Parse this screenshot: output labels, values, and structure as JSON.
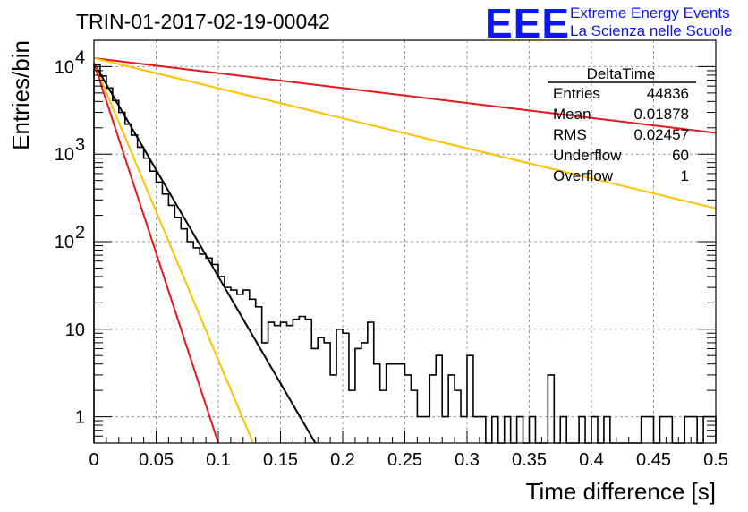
{
  "title": "TRIN-01-2017-02-19-00042",
  "logo": {
    "mark": "EEE",
    "line1": "Extreme Energy Events",
    "line2": "La Scienza nelle Scuole"
  },
  "stats": {
    "name": "DeltaTime",
    "rows": [
      {
        "label": "Entries",
        "value": "44836"
      },
      {
        "label": "Mean",
        "value": "0.01878"
      },
      {
        "label": "RMS",
        "value": "0.02457"
      },
      {
        "label": "Underflow",
        "value": "60"
      },
      {
        "label": "Overflow",
        "value": "1"
      }
    ]
  },
  "colors": {
    "histogram": "#000000",
    "fit_black": "#000000",
    "red": "#e8141c",
    "orange": "#ffc000",
    "logo": "#0a14ff"
  },
  "chart_data": {
    "type": "line",
    "xlabel": "Time difference [s]",
    "ylabel": "Entries/bin",
    "xlim": [
      0,
      0.5
    ],
    "ylim": [
      0.5,
      20000
    ],
    "yscale": "log",
    "grid": true,
    "xticks": [
      {
        "v": 0,
        "label": "0"
      },
      {
        "v": 0.05,
        "label": "0.05"
      },
      {
        "v": 0.1,
        "label": "0.1"
      },
      {
        "v": 0.15,
        "label": "0.15"
      },
      {
        "v": 0.2,
        "label": "0.2"
      },
      {
        "v": 0.25,
        "label": "0.25"
      },
      {
        "v": 0.3,
        "label": "0.3"
      },
      {
        "v": 0.35,
        "label": "0.35"
      },
      {
        "v": 0.4,
        "label": "0.4"
      },
      {
        "v": 0.45,
        "label": "0.45"
      },
      {
        "v": 0.5,
        "label": "0.5"
      }
    ],
    "yticks": [
      {
        "v": 1,
        "base": "1",
        "exp": ""
      },
      {
        "v": 10,
        "base": "10",
        "exp": ""
      },
      {
        "v": 100,
        "base": "10",
        "exp": "2"
      },
      {
        "v": 1000,
        "base": "10",
        "exp": "3"
      },
      {
        "v": 10000,
        "base": "10",
        "exp": "4"
      }
    ],
    "histogram": {
      "bin_width": 0.005,
      "x_start": 0,
      "values": [
        10500,
        7800,
        5700,
        4100,
        3000,
        2200,
        1650,
        1200,
        900,
        640,
        480,
        350,
        260,
        190,
        140,
        100,
        85,
        72,
        65,
        55,
        40,
        30,
        28,
        25,
        28,
        22,
        18,
        7,
        12,
        11,
        12,
        11,
        13,
        14,
        13,
        6,
        8,
        7,
        3,
        10,
        9,
        2,
        6,
        7,
        12,
        4,
        2,
        4,
        4,
        4,
        3,
        2,
        1,
        1,
        3,
        5,
        1,
        3,
        2,
        1,
        5,
        1,
        1,
        0,
        1,
        0,
        1,
        0,
        1,
        0,
        1,
        0,
        0,
        3,
        0,
        1,
        0,
        0,
        1,
        0,
        1,
        0,
        1,
        0,
        0,
        0,
        0,
        0,
        1,
        1,
        0,
        1,
        1,
        0,
        0,
        1,
        1,
        0,
        1,
        1
      ]
    },
    "series": [
      {
        "color": "red",
        "x": [
          0,
          0.5
        ],
        "y": [
          12500,
          1750
        ]
      },
      {
        "color": "orange",
        "x": [
          0,
          0.5
        ],
        "y": [
          12500,
          240
        ]
      },
      {
        "color": "black",
        "x": [
          0,
          0.178
        ],
        "y": [
          11000,
          0.5
        ]
      },
      {
        "color": "orange",
        "x": [
          0,
          0.128
        ],
        "y": [
          11000,
          0.5
        ]
      },
      {
        "color": "red",
        "x": [
          0,
          0.1
        ],
        "y": [
          11000,
          0.5
        ]
      }
    ]
  }
}
